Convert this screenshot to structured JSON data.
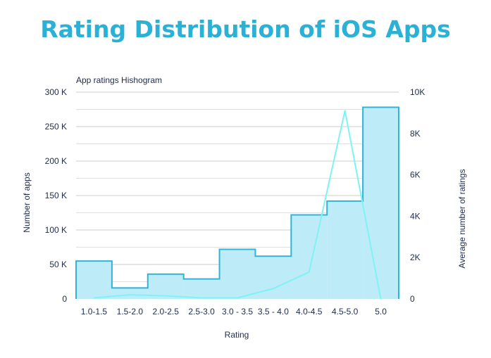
{
  "title": "Rating Distribution of iOS Apps",
  "colors": {
    "title": "#2bb0d6",
    "bar_fill": "#bdebf7",
    "bar_stroke": "#31b3d8",
    "line": "#7ff3f4",
    "text": "#1e2b4d",
    "grid": "#cccccc"
  },
  "chart_data": {
    "type": "bar",
    "subtitle": "App ratings Hishogram",
    "categories": [
      "1.0-1.5",
      "1.5-2.0",
      "2.0-2.5",
      "2.5-3.0",
      "3.0 - 3.5",
      "3.5 - 4.0",
      "4.0-4.5",
      "4.5-5.0",
      "5.0"
    ],
    "xlabel": "Rating",
    "ylabel_left": "Number of apps",
    "ylabel_right": "Average number of ratings",
    "ylim_left": [
      0,
      300000
    ],
    "ylim_right": [
      0,
      10000
    ],
    "yticks_left": [
      0,
      50000,
      100000,
      150000,
      200000,
      250000,
      300000
    ],
    "ytick_labels_left": [
      "0",
      "50 K",
      "100 K",
      "150 K",
      "200 K",
      "250 K",
      "300 K"
    ],
    "yticks_right": [
      0,
      2000,
      4000,
      6000,
      8000,
      10000
    ],
    "ytick_labels_right": [
      "0",
      "2K",
      "4K",
      "6K",
      "8K",
      "10K"
    ],
    "grid": true,
    "series": [
      {
        "axis": "left",
        "kind": "step-area",
        "values": [
          55000,
          16000,
          36000,
          29000,
          72000,
          62000,
          122000,
          142000,
          278000
        ]
      },
      {
        "axis": "right",
        "kind": "line",
        "values": [
          50,
          200,
          150,
          50,
          50,
          500,
          1300,
          9100,
          0
        ]
      }
    ]
  }
}
